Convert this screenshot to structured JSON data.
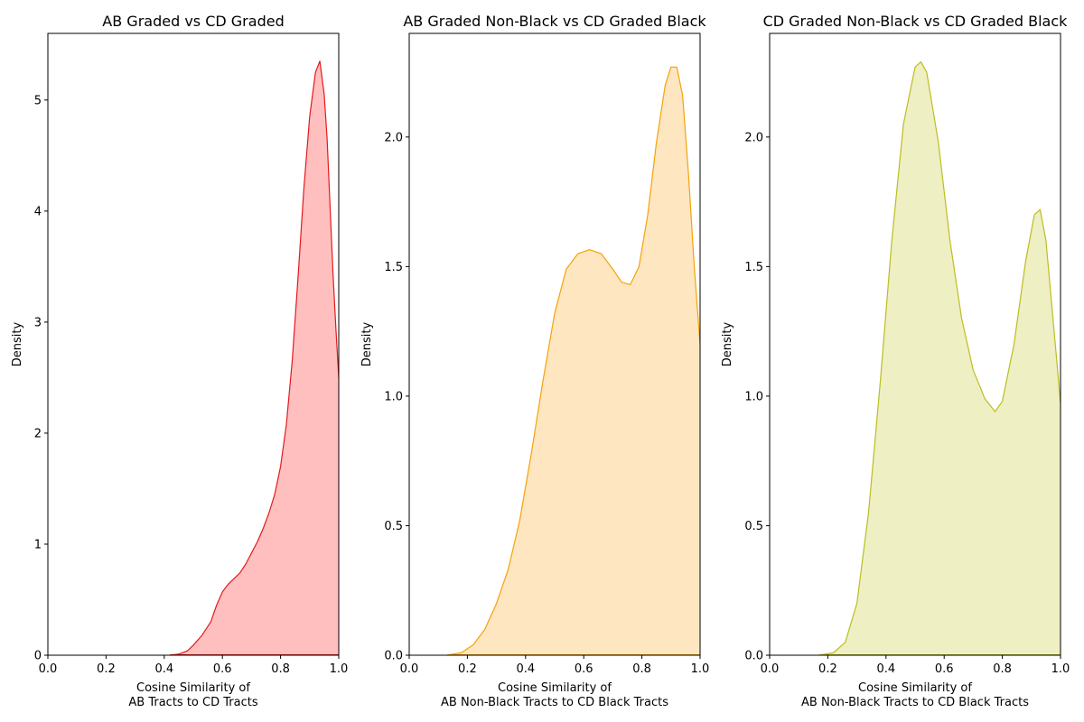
{
  "chart_data": [
    {
      "type": "area",
      "title": "AB Graded vs CD Graded",
      "xlabel": [
        "Cosine Similarity of",
        "AB Tracts to CD Tracts"
      ],
      "ylabel": "Density",
      "xlim": [
        0,
        1
      ],
      "ylim": [
        0,
        5.6
      ],
      "xticks": [
        "0.0",
        "0.2",
        "0.4",
        "0.6",
        "0.8",
        "1.0"
      ],
      "xtick_values": [
        0,
        0.2,
        0.4,
        0.6,
        0.8,
        1.0
      ],
      "yticks": [
        "0",
        "1",
        "2",
        "3",
        "4",
        "5"
      ],
      "ytick_values": [
        0,
        1,
        2,
        3,
        4,
        5
      ],
      "grid": false,
      "line_color": "#e41a1c",
      "fill_color": "#ffbfbf",
      "series": [
        {
          "x": [
            0.42,
            0.45,
            0.48,
            0.5,
            0.53,
            0.56,
            0.58,
            0.6,
            0.62,
            0.64,
            0.66,
            0.68,
            0.7,
            0.72,
            0.74,
            0.76,
            0.78,
            0.8,
            0.82,
            0.84,
            0.86,
            0.88,
            0.9,
            0.92,
            0.935,
            0.95,
            0.96,
            0.97,
            0.98,
            0.99,
            1.0
          ],
          "y": [
            0.0,
            0.01,
            0.04,
            0.09,
            0.18,
            0.3,
            0.45,
            0.57,
            0.64,
            0.69,
            0.74,
            0.82,
            0.92,
            1.02,
            1.14,
            1.28,
            1.45,
            1.7,
            2.08,
            2.65,
            3.4,
            4.2,
            4.85,
            5.25,
            5.35,
            5.05,
            4.65,
            4.05,
            3.45,
            2.95,
            2.5
          ]
        }
      ]
    },
    {
      "type": "area",
      "title": "AB Graded Non-Black vs CD Graded Black",
      "xlabel": [
        "Cosine Similarity of",
        "AB Non-Black Tracts to CD Black Tracts"
      ],
      "ylabel": "Density",
      "xlim": [
        0,
        1
      ],
      "ylim": [
        0,
        2.4
      ],
      "xticks": [
        "0.0",
        "0.2",
        "0.4",
        "0.6",
        "0.8",
        "1.0"
      ],
      "xtick_values": [
        0,
        0.2,
        0.4,
        0.6,
        0.8,
        1.0
      ],
      "yticks": [
        "0.0",
        "0.5",
        "1.0",
        "1.5",
        "2.0"
      ],
      "ytick_values": [
        0,
        0.5,
        1.0,
        1.5,
        2.0
      ],
      "grid": false,
      "line_color": "#f5a20a",
      "fill_color": "#fde6c0",
      "series": [
        {
          "x": [
            0.13,
            0.18,
            0.22,
            0.26,
            0.3,
            0.34,
            0.38,
            0.42,
            0.46,
            0.5,
            0.54,
            0.58,
            0.62,
            0.66,
            0.7,
            0.73,
            0.76,
            0.79,
            0.82,
            0.85,
            0.88,
            0.9,
            0.92,
            0.94,
            0.96,
            0.98,
            1.0
          ],
          "y": [
            0.0,
            0.01,
            0.04,
            0.1,
            0.2,
            0.33,
            0.52,
            0.78,
            1.06,
            1.32,
            1.49,
            1.55,
            1.565,
            1.55,
            1.49,
            1.44,
            1.43,
            1.5,
            1.7,
            1.98,
            2.2,
            2.27,
            2.27,
            2.16,
            1.86,
            1.5,
            1.2
          ]
        }
      ]
    },
    {
      "type": "area",
      "title": "CD Graded Non-Black vs CD Graded Black",
      "xlabel": [
        "Cosine Similarity of",
        "AB Non-Black Tracts to CD Black Tracts"
      ],
      "ylabel": "Density",
      "xlim": [
        0,
        1
      ],
      "ylim": [
        0,
        2.4
      ],
      "xticks": [
        "0.0",
        "0.2",
        "0.4",
        "0.6",
        "0.8",
        "1.0"
      ],
      "xtick_values": [
        0,
        0.2,
        0.4,
        0.6,
        0.8,
        1.0
      ],
      "yticks": [
        "0.0",
        "0.5",
        "1.0",
        "1.5",
        "2.0"
      ],
      "ytick_values": [
        0,
        0.5,
        1.0,
        1.5,
        2.0
      ],
      "grid": false,
      "line_color": "#bcbd22",
      "fill_color": "#eeefc2",
      "series": [
        {
          "x": [
            0.17,
            0.22,
            0.26,
            0.3,
            0.34,
            0.38,
            0.42,
            0.46,
            0.5,
            0.52,
            0.54,
            0.58,
            0.62,
            0.66,
            0.7,
            0.74,
            0.775,
            0.8,
            0.84,
            0.88,
            0.91,
            0.93,
            0.95,
            0.97,
            0.99,
            1.0
          ],
          "y": [
            0.0,
            0.01,
            0.05,
            0.2,
            0.55,
            1.05,
            1.6,
            2.05,
            2.27,
            2.29,
            2.25,
            1.98,
            1.6,
            1.3,
            1.1,
            0.99,
            0.94,
            0.98,
            1.2,
            1.52,
            1.7,
            1.72,
            1.6,
            1.35,
            1.1,
            0.97
          ]
        }
      ]
    }
  ]
}
